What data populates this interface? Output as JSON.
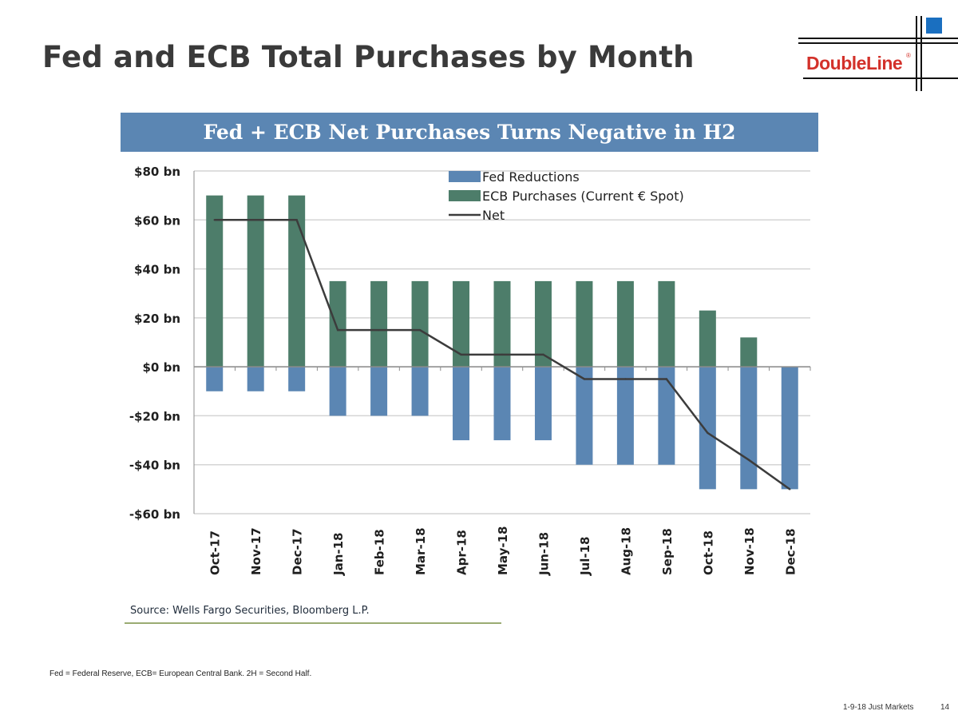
{
  "slide": {
    "title": "Fed and ECB Total Purchases by Month",
    "logo_text": "DoubleLine",
    "logo_mark": "®",
    "footnote": "Fed = Federal Reserve, ECB= European Central Bank. 2H = Second Half.",
    "footer": "1-9-18 Just Markets",
    "page_number": "14"
  },
  "colors": {
    "fed": "#5b86b3",
    "ecb": "#4d7d6a",
    "net": "#3c3c3c",
    "banner": "#5b86b3",
    "logo_red": "#d3312a",
    "logo_blue": "#1a6fc0"
  },
  "chart_data": {
    "type": "bar",
    "title": "Fed + ECB Net Purchases Turns Negative in H2",
    "source": "Source: Wells Fargo Securities, Bloomberg L.P.",
    "categories": [
      "Oct-17",
      "Nov-17",
      "Dec-17",
      "Jan-18",
      "Feb-18",
      "Mar-18",
      "Apr-18",
      "May-18",
      "Jun-18",
      "Jul-18",
      "Aug-18",
      "Sep-18",
      "Oct-18",
      "Nov-18",
      "Dec-18"
    ],
    "series": [
      {
        "name": "Fed Reductions",
        "type": "bar",
        "values": [
          -10,
          -10,
          -10,
          -20,
          -20,
          -20,
          -30,
          -30,
          -30,
          -40,
          -40,
          -40,
          -50,
          -50,
          -50
        ]
      },
      {
        "name": "ECB Purchases (Current € Spot)",
        "type": "bar",
        "values": [
          70,
          70,
          70,
          35,
          35,
          35,
          35,
          35,
          35,
          35,
          35,
          35,
          23,
          12,
          0
        ]
      },
      {
        "name": "Net",
        "type": "line",
        "values": [
          60,
          60,
          60,
          15,
          15,
          15,
          5,
          5,
          5,
          -5,
          -5,
          -5,
          -27,
          -38,
          -50
        ]
      }
    ],
    "ylim": [
      -60,
      80
    ],
    "yticks": [
      {
        "value": 80,
        "label": "$80 bn"
      },
      {
        "value": 60,
        "label": "$60 bn"
      },
      {
        "value": 40,
        "label": "$40 bn"
      },
      {
        "value": 20,
        "label": "$20 bn"
      },
      {
        "value": 0,
        "label": "$0 bn"
      },
      {
        "value": -20,
        "label": "-$20 bn"
      },
      {
        "value": -40,
        "label": "-$40 bn"
      },
      {
        "value": -60,
        "label": "-$60 bn"
      }
    ],
    "grid": true,
    "legend": "top-right"
  }
}
